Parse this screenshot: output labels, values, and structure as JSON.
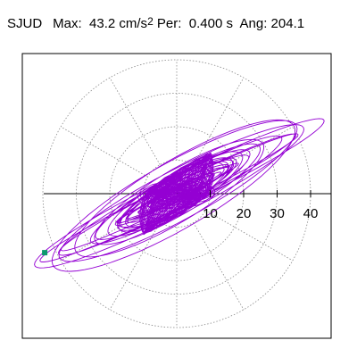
{
  "header": {
    "station": "SJUD",
    "max_label": "Max:",
    "max_value": "43.2 cm/s",
    "max_exp": "2",
    "per_label": "Per:",
    "per_value": "0.400 s",
    "ang_label": "Ang:",
    "ang_value": "204.1"
  },
  "colors": {
    "orbit": "#9400d3",
    "grid": "#8a8a8a",
    "axis": "#000000",
    "marker": "#0e9a6e",
    "frame": "#000000"
  },
  "chart_data": {
    "type": "scatter",
    "description_type": "polar particle-motion orbit",
    "radial_ticks": [
      10,
      20,
      30,
      40
    ],
    "radial_units": "cm/s2",
    "angular_grid_step_deg": 30,
    "peak": {
      "amplitude": 43.2,
      "angle_deg": 204.1,
      "units": "cm/s2"
    },
    "period_s": 0.4,
    "x_axis": "horizontal",
    "grid": true
  }
}
